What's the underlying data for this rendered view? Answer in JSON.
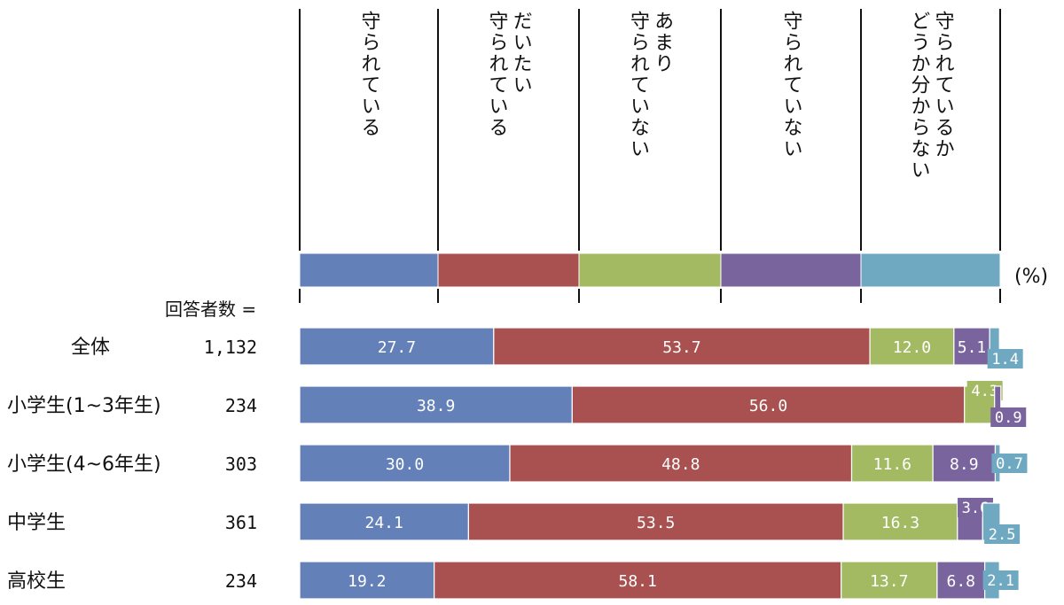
{
  "chart_data": {
    "type": "bar",
    "orientation": "horizontal",
    "stacked": true,
    "unit_label": "(%)",
    "respondents_label": "回答者数 =",
    "legend": [
      {
        "lines": [
          "守られている"
        ],
        "color": "#6480b8"
      },
      {
        "lines": [
          "だいたい",
          "守られている"
        ],
        "color": "#a85150"
      },
      {
        "lines": [
          "あまり",
          "守られていない"
        ],
        "color": "#a4ba62"
      },
      {
        "lines": [
          "守られていない"
        ],
        "color": "#7a649e"
      },
      {
        "lines": [
          "守られているか",
          "どうか分からない"
        ],
        "color": "#6fa9c1"
      }
    ],
    "rows": [
      {
        "name": "全体",
        "n": "1,132",
        "values": [
          27.7,
          53.7,
          12.0,
          5.1,
          1.4
        ],
        "labels": [
          "27.7",
          "53.7",
          "12.0",
          "5.1",
          "1.4"
        ]
      },
      {
        "name": "小学生(1~3年生)",
        "n": "234",
        "values": [
          38.9,
          56.0,
          4.3,
          0.9,
          0.0
        ],
        "labels": [
          "38.9",
          "56.0",
          "4.3",
          "0.9",
          ""
        ]
      },
      {
        "name": "小学生(4~6年生)",
        "n": "303",
        "values": [
          30.0,
          48.8,
          11.6,
          8.9,
          0.7
        ],
        "labels": [
          "30.0",
          "48.8",
          "11.6",
          "8.9",
          "0.7"
        ]
      },
      {
        "name": "中学生",
        "n": "361",
        "values": [
          24.1,
          53.5,
          16.3,
          3.6,
          2.5
        ],
        "labels": [
          "24.1",
          "53.5",
          "16.3",
          "3.6",
          "2.5"
        ]
      },
      {
        "name": "高校生",
        "n": "234",
        "values": [
          19.2,
          58.1,
          13.7,
          6.8,
          2.1
        ],
        "labels": [
          "19.2",
          "58.1",
          "13.7",
          "6.8",
          "2.1"
        ]
      }
    ]
  }
}
